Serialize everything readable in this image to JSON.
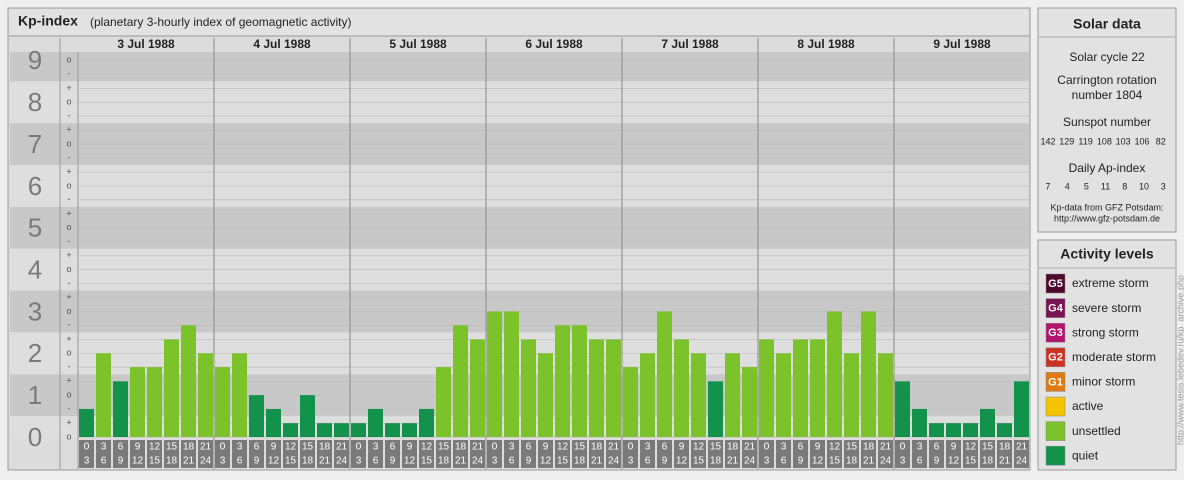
{
  "header": {
    "title": "Kp-index",
    "subtitle": "(planetary 3-hourly index of geomagnetic activity)"
  },
  "chart_data": {
    "type": "bar",
    "categories": [
      "3 Jul 1988",
      "4 Jul 1988",
      "5 Jul 1988",
      "6 Jul 1988",
      "7 Jul 1988",
      "8 Jul 1988",
      "9 Jul 1988"
    ],
    "hours": [
      [
        "0",
        "3"
      ],
      [
        "3",
        "6"
      ],
      [
        "6",
        "9"
      ],
      [
        "9",
        "12"
      ],
      [
        "12",
        "15"
      ],
      [
        "15",
        "18"
      ],
      [
        "18",
        "21"
      ],
      [
        "21",
        "24"
      ]
    ],
    "values": [
      [
        0.67,
        2,
        1.33,
        1.67,
        1.67,
        2.33,
        2.67,
        2
      ],
      [
        1.67,
        2,
        1,
        0.67,
        0.33,
        1,
        0.33,
        0.33
      ],
      [
        0.33,
        0.67,
        0.33,
        0.33,
        0.67,
        1.67,
        2.67,
        2.33
      ],
      [
        3,
        3,
        2.33,
        2,
        2.67,
        2.67,
        2.33,
        2.33
      ],
      [
        1.67,
        2,
        3,
        2.33,
        2,
        1.33,
        2,
        1.67
      ],
      [
        2.33,
        2,
        2.33,
        2.33,
        3,
        2,
        3,
        2
      ],
      [
        1.33,
        0.67,
        0.33,
        0.33,
        0.33,
        0.67,
        0.33,
        1.33
      ]
    ],
    "colors": [
      [
        "#13924b",
        "#7cc22a",
        "#13924b",
        "#7cc22a",
        "#7cc22a",
        "#7cc22a",
        "#7cc22a",
        "#7cc22a"
      ],
      [
        "#7cc22a",
        "#7cc22a",
        "#13924b",
        "#13924b",
        "#13924b",
        "#13924b",
        "#13924b",
        "#13924b"
      ],
      [
        "#13924b",
        "#13924b",
        "#13924b",
        "#13924b",
        "#13924b",
        "#7cc22a",
        "#7cc22a",
        "#7cc22a"
      ],
      [
        "#7cc22a",
        "#7cc22a",
        "#7cc22a",
        "#7cc22a",
        "#7cc22a",
        "#7cc22a",
        "#7cc22a",
        "#7cc22a"
      ],
      [
        "#7cc22a",
        "#7cc22a",
        "#7cc22a",
        "#7cc22a",
        "#7cc22a",
        "#13924b",
        "#7cc22a",
        "#7cc22a"
      ],
      [
        "#7cc22a",
        "#7cc22a",
        "#7cc22a",
        "#7cc22a",
        "#7cc22a",
        "#7cc22a",
        "#7cc22a",
        "#7cc22a"
      ],
      [
        "#13924b",
        "#13924b",
        "#13924b",
        "#13924b",
        "#13924b",
        "#13924b",
        "#13924b",
        "#13924b"
      ]
    ],
    "ylim": [
      0,
      9.2
    ],
    "yticks": [
      0,
      1,
      2,
      3,
      4,
      5,
      6,
      7,
      8,
      9
    ],
    "minor_yticks": [
      {
        "value": 0,
        "label": "o"
      },
      {
        "value": 0.33,
        "label": "+"
      },
      {
        "value": 0.67,
        "label": "-"
      },
      {
        "value": 1,
        "label": "o"
      },
      {
        "value": 1.33,
        "label": "+"
      },
      {
        "value": 1.67,
        "label": "-"
      },
      {
        "value": 2,
        "label": "o"
      },
      {
        "value": 2.33,
        "label": "+"
      },
      {
        "value": 2.67,
        "label": "-"
      },
      {
        "value": 3,
        "label": "o"
      },
      {
        "value": 3.33,
        "label": "+"
      },
      {
        "value": 3.67,
        "label": "-"
      },
      {
        "value": 4,
        "label": "o"
      },
      {
        "value": 4.33,
        "label": "+"
      },
      {
        "value": 4.67,
        "label": "-"
      },
      {
        "value": 5,
        "label": "o"
      },
      {
        "value": 5.33,
        "label": "+"
      },
      {
        "value": 5.67,
        "label": "-"
      },
      {
        "value": 6,
        "label": "o"
      },
      {
        "value": 6.33,
        "label": "+"
      },
      {
        "value": 6.67,
        "label": "-"
      },
      {
        "value": 7,
        "label": "o"
      },
      {
        "value": 7.33,
        "label": "+"
      },
      {
        "value": 7.67,
        "label": "-"
      },
      {
        "value": 8,
        "label": "o"
      },
      {
        "value": 8.33,
        "label": "+"
      },
      {
        "value": 8.67,
        "label": "-"
      },
      {
        "value": 9,
        "label": "o"
      }
    ],
    "grid": true
  },
  "solar_data": {
    "title": "Solar data",
    "cycle": "Solar cycle 22",
    "carrington": [
      "Carrington rotation",
      "number 1804"
    ],
    "sunspot_label": "Sunspot number",
    "sunspot_values": [
      "142",
      "129",
      "119",
      "108",
      "103",
      "106",
      "82"
    ],
    "ap_label": "Daily Ap-index",
    "ap_values": [
      "7",
      "4",
      "5",
      "11",
      "8",
      "10",
      "3"
    ],
    "source": [
      "Kp-data from GFZ Potsdam:",
      "http://www.gfz-potsdam.de"
    ]
  },
  "activity_levels": {
    "title": "Activity levels",
    "items": [
      {
        "badge": "G5",
        "label": "extreme storm",
        "color": "#4b0a2e"
      },
      {
        "badge": "G4",
        "label": "severe storm",
        "color": "#7a1450"
      },
      {
        "badge": "G3",
        "label": "strong storm",
        "color": "#b3156e"
      },
      {
        "badge": "G2",
        "label": "moderate storm",
        "color": "#cc3322"
      },
      {
        "badge": "G1",
        "label": "minor storm",
        "color": "#e07a10"
      },
      {
        "label": "active",
        "color": "#f5c400"
      },
      {
        "label": "unsettled",
        "color": "#7cc22a"
      },
      {
        "label": "quiet",
        "color": "#13924b"
      }
    ]
  },
  "side_url": "http://www.tesis.lebedev.ru/kp_archive.php"
}
